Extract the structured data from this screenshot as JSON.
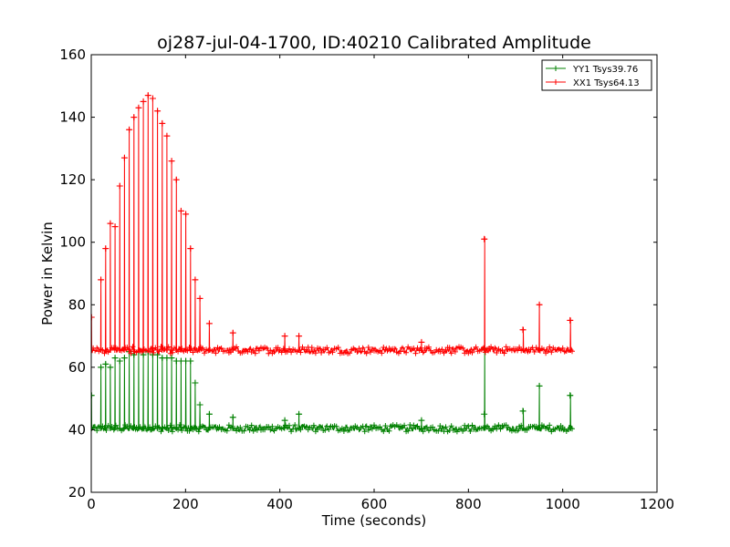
{
  "chart_data": {
    "type": "line",
    "title": "oj287-jul-04-1700, ID:40210 Calibrated Amplitude",
    "xlabel": "Time (seconds)",
    "ylabel": "Power in Kelvin",
    "xlim": [
      0,
      1200
    ],
    "ylim": [
      20,
      160
    ],
    "xticks": [
      0,
      200,
      400,
      600,
      800,
      1000,
      1200
    ],
    "yticks": [
      20,
      40,
      60,
      80,
      100,
      120,
      140,
      160
    ],
    "grid": false,
    "legend_position": "top-right",
    "marker": "+",
    "series": [
      {
        "name": "YY1 Tsys39.76",
        "color": "#008000",
        "baseline": 40.5,
        "x_end": 1020,
        "peaks": [
          [
            0,
            51
          ],
          [
            20,
            60
          ],
          [
            30,
            61
          ],
          [
            40,
            60
          ],
          [
            50,
            63
          ],
          [
            60,
            62
          ],
          [
            70,
            63
          ],
          [
            80,
            65
          ],
          [
            90,
            64
          ],
          [
            100,
            65
          ],
          [
            110,
            64
          ],
          [
            120,
            65
          ],
          [
            130,
            64
          ],
          [
            140,
            64
          ],
          [
            150,
            63
          ],
          [
            160,
            63
          ],
          [
            170,
            63
          ],
          [
            180,
            62
          ],
          [
            190,
            62
          ],
          [
            200,
            62
          ],
          [
            210,
            62
          ],
          [
            220,
            55
          ],
          [
            230,
            48
          ],
          [
            250,
            45
          ],
          [
            300,
            44
          ],
          [
            410,
            43
          ],
          [
            440,
            45
          ],
          [
            700,
            43
          ],
          [
            833,
            66
          ],
          [
            833,
            45
          ],
          [
            915,
            46
          ],
          [
            950,
            54
          ],
          [
            1015,
            51
          ]
        ]
      },
      {
        "name": "XX1 Tsys64.13",
        "color": "#ff0000",
        "baseline": 65.5,
        "x_end": 1020,
        "peaks": [
          [
            0,
            76
          ],
          [
            20,
            88
          ],
          [
            30,
            98
          ],
          [
            40,
            106
          ],
          [
            50,
            105
          ],
          [
            60,
            118
          ],
          [
            70,
            127
          ],
          [
            80,
            136
          ],
          [
            90,
            140
          ],
          [
            100,
            143
          ],
          [
            110,
            145
          ],
          [
            120,
            147
          ],
          [
            130,
            146
          ],
          [
            140,
            142
          ],
          [
            150,
            138
          ],
          [
            160,
            134
          ],
          [
            170,
            126
          ],
          [
            180,
            120
          ],
          [
            190,
            110
          ],
          [
            200,
            109
          ],
          [
            210,
            98
          ],
          [
            220,
            88
          ],
          [
            230,
            82
          ],
          [
            250,
            74
          ],
          [
            300,
            71
          ],
          [
            410,
            70
          ],
          [
            440,
            70
          ],
          [
            700,
            68
          ],
          [
            833,
            101
          ],
          [
            915,
            72
          ],
          [
            950,
            80
          ],
          [
            1015,
            75
          ]
        ]
      }
    ]
  }
}
